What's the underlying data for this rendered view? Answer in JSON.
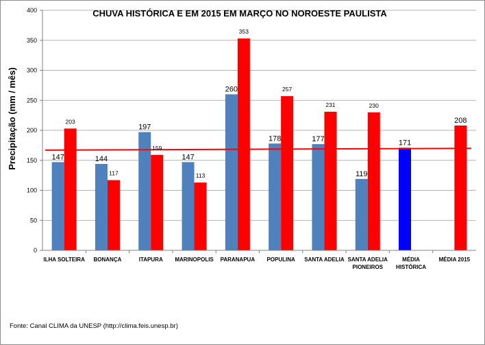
{
  "chart_data": {
    "type": "bar",
    "title": "CHUVA HISTÓRICA E EM 2015 EM MARÇO NO NOROESTE PAULISTA",
    "ylabel": "Precipitação (mm / mês)",
    "xlabel": "",
    "ylim": [
      0,
      400
    ],
    "yticks": [
      0,
      50,
      100,
      150,
      200,
      250,
      300,
      350,
      400
    ],
    "grid": true,
    "categories": [
      [
        "ILHA SOLTEIRA"
      ],
      [
        "BONANÇA"
      ],
      [
        "ITAPURA"
      ],
      [
        "MARINOPOLIS"
      ],
      [
        "PARANAPUA"
      ],
      [
        "POPULINA"
      ],
      [
        "SANTA ADELIA"
      ],
      [
        "SANTA ADELIA",
        "PIONEIROS"
      ],
      [
        "MÉDIA",
        "HISTÓRICA"
      ],
      [
        "MÉDIA 2015"
      ]
    ],
    "series": [
      {
        "values": [
          147,
          144,
          197,
          147,
          260,
          178,
          177,
          119,
          171,
          null
        ],
        "color": "#4f81bd"
      },
      {
        "values": [
          203,
          117,
          159,
          113,
          353,
          257,
          231,
          230,
          null,
          208
        ],
        "color": "#ff0000"
      }
    ],
    "highlight": {
      "category_index": 8,
      "series_index": 0,
      "color": "#0000ff"
    },
    "reference_line": {
      "value": 169,
      "from": 167,
      "to": 170,
      "color": "#ff0000"
    },
    "label_styles": {
      "big": [
        [
          0,
          0
        ],
        [
          1,
          0
        ],
        [
          2,
          0
        ],
        [
          3,
          0
        ],
        [
          4,
          0
        ],
        [
          5,
          0
        ],
        [
          6,
          0
        ],
        [
          7,
          0
        ],
        [
          8,
          0
        ],
        [
          9,
          1
        ]
      ]
    }
  },
  "footer": "Fonte:  Canal CLIMA da UNESP (http://clima.feis.unesp.br)"
}
